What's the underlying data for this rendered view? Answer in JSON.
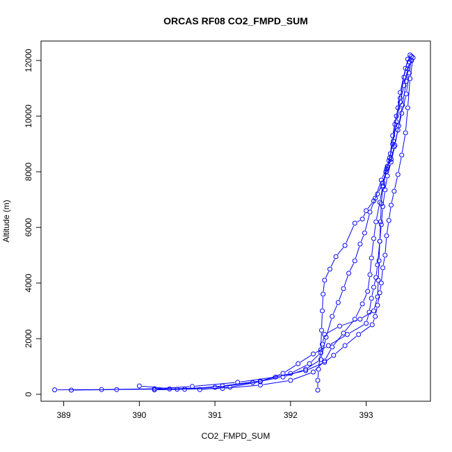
{
  "chart_data": {
    "type": "line",
    "title": "ORCAS RF08 CO2_FMPD_SUM",
    "xlabel": "CO2_FMPD_SUM",
    "ylabel": "Altitude (m)",
    "xlim": [
      388.7,
      393.85
    ],
    "ylim": [
      -250,
      12700
    ],
    "x_ticks": [
      389,
      390,
      391,
      392,
      393
    ],
    "y_ticks": [
      0,
      2000,
      4000,
      6000,
      8000,
      10000,
      12000
    ],
    "grid": false,
    "legend": "none",
    "series_color": "#0000ff",
    "marker": "open-circle",
    "series": [
      {
        "values": [
          {
            "x": 393.58,
            "y": 12200
          },
          {
            "x": 393.52,
            "y": 11720
          },
          {
            "x": 393.45,
            "y": 10850
          },
          {
            "x": 393.42,
            "y": 10300
          },
          {
            "x": 393.38,
            "y": 9700
          },
          {
            "x": 393.35,
            "y": 9000
          },
          {
            "x": 393.3,
            "y": 8400
          },
          {
            "x": 393.27,
            "y": 8100
          },
          {
            "x": 393.22,
            "y": 7600
          },
          {
            "x": 393.15,
            "y": 7200
          },
          {
            "x": 393.1,
            "y": 6950
          },
          {
            "x": 393.0,
            "y": 6600
          },
          {
            "x": 392.95,
            "y": 6300
          },
          {
            "x": 392.85,
            "y": 6150
          },
          {
            "x": 392.72,
            "y": 5350
          },
          {
            "x": 392.6,
            "y": 4950
          },
          {
            "x": 392.52,
            "y": 4500
          },
          {
            "x": 392.45,
            "y": 4100
          },
          {
            "x": 392.43,
            "y": 3600
          },
          {
            "x": 392.42,
            "y": 3000
          },
          {
            "x": 392.41,
            "y": 2300
          },
          {
            "x": 392.4,
            "y": 1600
          },
          {
            "x": 392.37,
            "y": 900
          },
          {
            "x": 392.36,
            "y": 500
          },
          {
            "x": 392.36,
            "y": 150
          }
        ]
      },
      {
        "values": [
          {
            "x": 393.6,
            "y": 12150
          },
          {
            "x": 393.57,
            "y": 11550
          },
          {
            "x": 393.53,
            "y": 10800
          },
          {
            "x": 393.47,
            "y": 10100
          },
          {
            "x": 393.42,
            "y": 9500
          },
          {
            "x": 393.37,
            "y": 8900
          },
          {
            "x": 393.33,
            "y": 8450
          },
          {
            "x": 393.28,
            "y": 8200
          },
          {
            "x": 393.2,
            "y": 7700
          },
          {
            "x": 393.12,
            "y": 7050
          },
          {
            "x": 393.05,
            "y": 6550
          },
          {
            "x": 392.98,
            "y": 5800
          },
          {
            "x": 392.92,
            "y": 5400
          },
          {
            "x": 392.85,
            "y": 4800
          },
          {
            "x": 392.77,
            "y": 4350
          },
          {
            "x": 392.7,
            "y": 3800
          },
          {
            "x": 392.63,
            "y": 3300
          },
          {
            "x": 392.55,
            "y": 2800
          },
          {
            "x": 392.47,
            "y": 2050
          },
          {
            "x": 392.4,
            "y": 1250
          },
          {
            "x": 392.2,
            "y": 900
          },
          {
            "x": 391.9,
            "y": 620
          },
          {
            "x": 391.5,
            "y": 420
          },
          {
            "x": 391.0,
            "y": 250
          },
          {
            "x": 390.4,
            "y": 190
          },
          {
            "x": 389.7,
            "y": 170
          },
          {
            "x": 389.1,
            "y": 150
          }
        ]
      },
      {
        "values": [
          {
            "x": 393.62,
            "y": 12100
          },
          {
            "x": 393.58,
            "y": 11350
          },
          {
            "x": 393.55,
            "y": 10300
          },
          {
            "x": 393.52,
            "y": 9400
          },
          {
            "x": 393.47,
            "y": 8600
          },
          {
            "x": 393.42,
            "y": 7900
          },
          {
            "x": 393.37,
            "y": 7300
          },
          {
            "x": 393.33,
            "y": 6800
          },
          {
            "x": 393.3,
            "y": 6250
          },
          {
            "x": 393.27,
            "y": 5700
          },
          {
            "x": 393.25,
            "y": 5000
          },
          {
            "x": 393.22,
            "y": 4550
          },
          {
            "x": 393.2,
            "y": 4000
          },
          {
            "x": 393.18,
            "y": 3650
          },
          {
            "x": 393.15,
            "y": 3200
          },
          {
            "x": 393.12,
            "y": 2800
          },
          {
            "x": 393.08,
            "y": 2500
          },
          {
            "x": 392.9,
            "y": 2150
          },
          {
            "x": 392.72,
            "y": 1750
          },
          {
            "x": 392.57,
            "y": 1400
          },
          {
            "x": 392.45,
            "y": 1150
          },
          {
            "x": 392.2,
            "y": 850
          },
          {
            "x": 391.8,
            "y": 620
          },
          {
            "x": 391.3,
            "y": 430
          },
          {
            "x": 390.7,
            "y": 280
          },
          {
            "x": 390.2,
            "y": 200
          },
          {
            "x": 389.5,
            "y": 170
          },
          {
            "x": 388.88,
            "y": 160
          }
        ]
      },
      {
        "values": [
          {
            "x": 393.55,
            "y": 12050
          },
          {
            "x": 393.5,
            "y": 11400
          },
          {
            "x": 393.45,
            "y": 10650
          },
          {
            "x": 393.4,
            "y": 10000
          },
          {
            "x": 393.35,
            "y": 9300
          },
          {
            "x": 393.32,
            "y": 8650
          },
          {
            "x": 393.28,
            "y": 8150
          },
          {
            "x": 393.22,
            "y": 7500
          },
          {
            "x": 393.18,
            "y": 6900
          },
          {
            "x": 393.13,
            "y": 6200
          },
          {
            "x": 393.1,
            "y": 5600
          },
          {
            "x": 393.07,
            "y": 4900
          },
          {
            "x": 393.05,
            "y": 4300
          },
          {
            "x": 393.02,
            "y": 3700
          },
          {
            "x": 392.95,
            "y": 3250
          },
          {
            "x": 392.85,
            "y": 2700
          },
          {
            "x": 392.7,
            "y": 2200
          },
          {
            "x": 392.55,
            "y": 1700
          },
          {
            "x": 392.45,
            "y": 1200
          },
          {
            "x": 392.3,
            "y": 800
          },
          {
            "x": 392.0,
            "y": 500
          },
          {
            "x": 391.6,
            "y": 330
          },
          {
            "x": 391.1,
            "y": 210
          },
          {
            "x": 390.5,
            "y": 180
          },
          {
            "x": 390.0,
            "y": 300
          }
        ]
      },
      {
        "values": [
          {
            "x": 393.57,
            "y": 11950
          },
          {
            "x": 393.53,
            "y": 11250
          },
          {
            "x": 393.48,
            "y": 10400
          },
          {
            "x": 393.43,
            "y": 9650
          },
          {
            "x": 393.38,
            "y": 8950
          },
          {
            "x": 393.33,
            "y": 8350
          },
          {
            "x": 393.28,
            "y": 7850
          },
          {
            "x": 393.25,
            "y": 7350
          },
          {
            "x": 393.22,
            "y": 6750
          },
          {
            "x": 393.2,
            "y": 6100
          },
          {
            "x": 393.18,
            "y": 5500
          },
          {
            "x": 393.15,
            "y": 4650
          },
          {
            "x": 393.13,
            "y": 4200
          },
          {
            "x": 393.1,
            "y": 3850
          },
          {
            "x": 393.07,
            "y": 3450
          },
          {
            "x": 393.04,
            "y": 2950
          },
          {
            "x": 393.0,
            "y": 2550
          },
          {
            "x": 392.75,
            "y": 2150
          },
          {
            "x": 392.5,
            "y": 1750
          },
          {
            "x": 392.3,
            "y": 1450
          },
          {
            "x": 392.1,
            "y": 1100
          },
          {
            "x": 391.9,
            "y": 750
          },
          {
            "x": 391.6,
            "y": 450
          },
          {
            "x": 391.2,
            "y": 260
          },
          {
            "x": 390.8,
            "y": 170
          }
        ]
      },
      {
        "values": [
          {
            "x": 393.6,
            "y": 12000
          },
          {
            "x": 393.55,
            "y": 11700
          },
          {
            "x": 393.5,
            "y": 11100
          },
          {
            "x": 393.45,
            "y": 10500
          },
          {
            "x": 393.4,
            "y": 9800
          },
          {
            "x": 393.36,
            "y": 9100
          },
          {
            "x": 393.31,
            "y": 8500
          },
          {
            "x": 393.26,
            "y": 8000
          },
          {
            "x": 393.22,
            "y": 7450
          },
          {
            "x": 393.2,
            "y": 6850
          },
          {
            "x": 393.19,
            "y": 6200
          },
          {
            "x": 393.18,
            "y": 5500
          },
          {
            "x": 393.17,
            "y": 4800
          },
          {
            "x": 393.16,
            "y": 4100
          },
          {
            "x": 393.15,
            "y": 3500
          },
          {
            "x": 393.1,
            "y": 3000
          },
          {
            "x": 392.92,
            "y": 2700
          },
          {
            "x": 392.65,
            "y": 2450
          },
          {
            "x": 392.45,
            "y": 2150
          },
          {
            "x": 392.42,
            "y": 1800
          },
          {
            "x": 392.4,
            "y": 1500
          },
          {
            "x": 392.25,
            "y": 1100
          },
          {
            "x": 392.0,
            "y": 750
          },
          {
            "x": 391.6,
            "y": 480
          },
          {
            "x": 391.1,
            "y": 300
          },
          {
            "x": 390.6,
            "y": 180
          },
          {
            "x": 390.2,
            "y": 160
          }
        ]
      }
    ]
  }
}
